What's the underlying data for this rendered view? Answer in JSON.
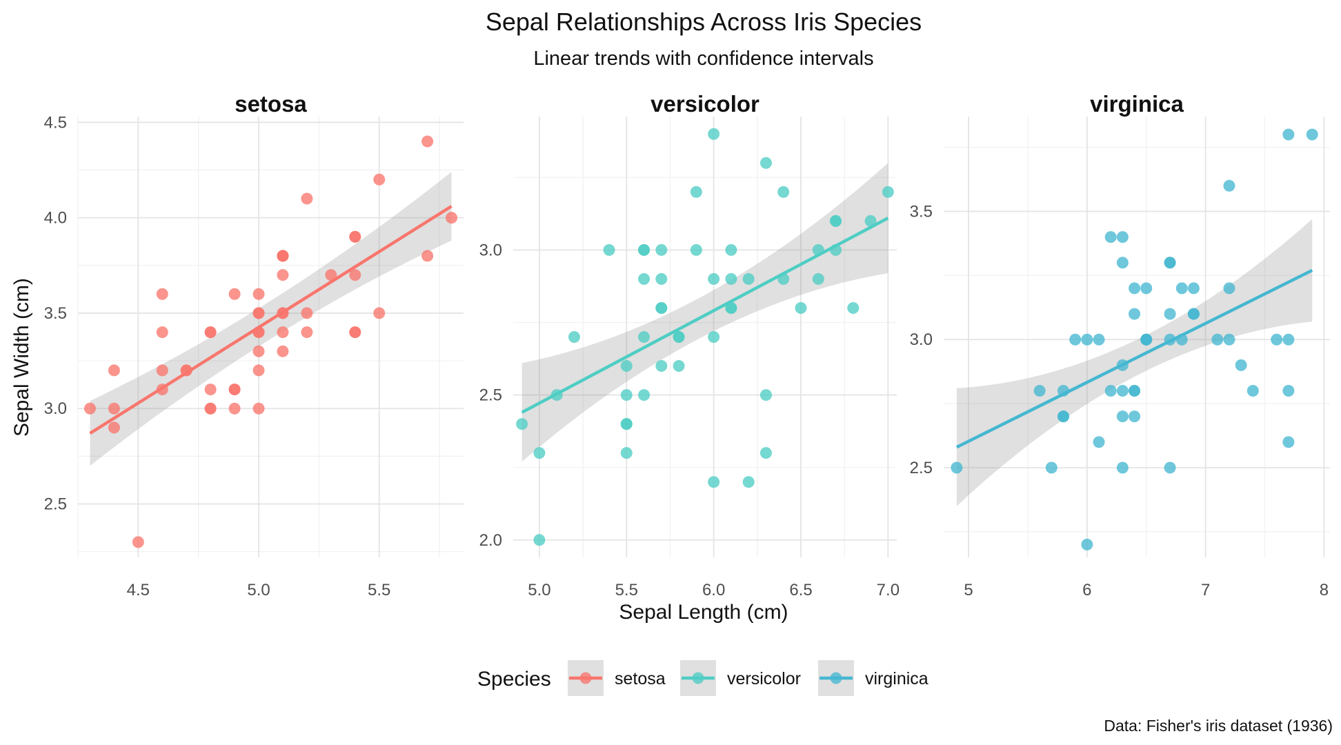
{
  "title": "Sepal Relationships Across Iris Species",
  "subtitle": "Linear trends with confidence intervals",
  "caption": "Data: Fisher's iris dataset (1936)",
  "legend": {
    "title": "Species",
    "position": "bottom"
  },
  "chart_data": {
    "type": "scatter",
    "facets": "free scales",
    "xlabel": "Sepal Length (cm)",
    "ylabel": "Sepal Width (cm)",
    "grid": true,
    "panels": [
      {
        "name": "setosa",
        "color": "#F8766D",
        "xlim": [
          4.25,
          5.85
        ],
        "ylim": [
          2.22,
          4.53
        ],
        "xticks": [
          "4.5",
          "5.0",
          "5.5"
        ],
        "yticks": [
          "2.5",
          "3.0",
          "3.5",
          "4.0",
          "4.5"
        ],
        "fit": {
          "x": [
            4.3,
            5.8
          ],
          "y": [
            2.87,
            4.06
          ],
          "ci_half": [
            0.17,
            0.1,
            0.18
          ]
        },
        "points": [
          [
            5.1,
            3.5
          ],
          [
            4.9,
            3.0
          ],
          [
            4.7,
            3.2
          ],
          [
            4.6,
            3.1
          ],
          [
            5.0,
            3.6
          ],
          [
            5.4,
            3.9
          ],
          [
            4.6,
            3.4
          ],
          [
            5.0,
            3.4
          ],
          [
            4.4,
            2.9
          ],
          [
            4.9,
            3.1
          ],
          [
            5.4,
            3.7
          ],
          [
            4.8,
            3.4
          ],
          [
            4.8,
            3.0
          ],
          [
            4.3,
            3.0
          ],
          [
            5.8,
            4.0
          ],
          [
            5.7,
            4.4
          ],
          [
            5.4,
            3.9
          ],
          [
            5.1,
            3.5
          ],
          [
            5.7,
            3.8
          ],
          [
            5.1,
            3.8
          ],
          [
            5.4,
            3.4
          ],
          [
            5.1,
            3.7
          ],
          [
            4.6,
            3.6
          ],
          [
            5.1,
            3.3
          ],
          [
            4.8,
            3.4
          ],
          [
            5.0,
            3.0
          ],
          [
            5.0,
            3.4
          ],
          [
            5.2,
            3.5
          ],
          [
            5.2,
            3.4
          ],
          [
            4.7,
            3.2
          ],
          [
            4.8,
            3.1
          ],
          [
            5.4,
            3.4
          ],
          [
            5.2,
            4.1
          ],
          [
            5.5,
            4.2
          ],
          [
            4.9,
            3.1
          ],
          [
            5.0,
            3.2
          ],
          [
            5.5,
            3.5
          ],
          [
            4.9,
            3.6
          ],
          [
            4.4,
            3.0
          ],
          [
            5.1,
            3.4
          ],
          [
            5.0,
            3.5
          ],
          [
            4.5,
            2.3
          ],
          [
            4.4,
            3.2
          ],
          [
            5.0,
            3.5
          ],
          [
            5.1,
            3.8
          ],
          [
            4.8,
            3.0
          ],
          [
            5.1,
            3.8
          ],
          [
            4.6,
            3.2
          ],
          [
            5.3,
            3.7
          ],
          [
            5.0,
            3.3
          ]
        ]
      },
      {
        "name": "versicolor",
        "color": "#4ECDC4",
        "xlim": [
          4.85,
          7.05
        ],
        "ylim": [
          1.94,
          3.46
        ],
        "xticks": [
          "5.0",
          "5.5",
          "6.0",
          "6.5",
          "7.0"
        ],
        "yticks": [
          "2.0",
          "2.5",
          "3.0"
        ],
        "fit": {
          "x": [
            4.9,
            7.0
          ],
          "y": [
            2.44,
            3.11
          ],
          "ci_half": [
            0.17,
            0.07,
            0.19
          ]
        },
        "points": [
          [
            7.0,
            3.2
          ],
          [
            6.4,
            3.2
          ],
          [
            6.9,
            3.1
          ],
          [
            5.5,
            2.3
          ],
          [
            6.5,
            2.8
          ],
          [
            5.7,
            2.8
          ],
          [
            6.3,
            3.3
          ],
          [
            4.9,
            2.4
          ],
          [
            6.6,
            2.9
          ],
          [
            5.2,
            2.7
          ],
          [
            5.0,
            2.0
          ],
          [
            5.9,
            3.0
          ],
          [
            6.0,
            2.2
          ],
          [
            6.1,
            2.9
          ],
          [
            5.6,
            2.9
          ],
          [
            6.7,
            3.1
          ],
          [
            5.6,
            3.0
          ],
          [
            5.8,
            2.7
          ],
          [
            6.2,
            2.2
          ],
          [
            5.6,
            2.5
          ],
          [
            5.9,
            3.2
          ],
          [
            6.1,
            2.8
          ],
          [
            6.3,
            2.5
          ],
          [
            6.1,
            2.8
          ],
          [
            6.4,
            2.9
          ],
          [
            6.6,
            3.0
          ],
          [
            6.8,
            2.8
          ],
          [
            6.7,
            3.0
          ],
          [
            6.0,
            2.9
          ],
          [
            5.7,
            2.6
          ],
          [
            5.5,
            2.4
          ],
          [
            5.5,
            2.4
          ],
          [
            5.8,
            2.7
          ],
          [
            6.0,
            2.7
          ],
          [
            5.4,
            3.0
          ],
          [
            6.0,
            3.4
          ],
          [
            6.7,
            3.1
          ],
          [
            6.3,
            2.3
          ],
          [
            5.6,
            3.0
          ],
          [
            5.5,
            2.5
          ],
          [
            5.5,
            2.6
          ],
          [
            6.1,
            3.0
          ],
          [
            5.8,
            2.6
          ],
          [
            5.0,
            2.3
          ],
          [
            5.6,
            2.7
          ],
          [
            5.7,
            3.0
          ],
          [
            5.7,
            2.9
          ],
          [
            6.2,
            2.9
          ],
          [
            5.1,
            2.5
          ],
          [
            5.7,
            2.8
          ]
        ]
      },
      {
        "name": "virginica",
        "color": "#45B7D1",
        "xlim": [
          4.79,
          8.05
        ],
        "ylim": [
          2.15,
          3.87
        ],
        "xticks": [
          "5",
          "6",
          "7",
          "8"
        ],
        "yticks": [
          "2.5",
          "3.0",
          "3.5"
        ],
        "fit": {
          "x": [
            4.9,
            7.9
          ],
          "y": [
            2.58,
            3.27
          ],
          "ci_half": [
            0.23,
            0.07,
            0.2
          ]
        },
        "points": [
          [
            6.3,
            3.3
          ],
          [
            5.8,
            2.7
          ],
          [
            7.1,
            3.0
          ],
          [
            6.3,
            2.9
          ],
          [
            6.5,
            3.0
          ],
          [
            7.6,
            3.0
          ],
          [
            4.9,
            2.5
          ],
          [
            7.3,
            2.9
          ],
          [
            6.7,
            2.5
          ],
          [
            7.2,
            3.6
          ],
          [
            6.5,
            3.2
          ],
          [
            6.4,
            2.7
          ],
          [
            6.8,
            3.0
          ],
          [
            5.7,
            2.5
          ],
          [
            5.8,
            2.8
          ],
          [
            6.4,
            3.2
          ],
          [
            6.5,
            3.0
          ],
          [
            7.7,
            3.8
          ],
          [
            7.7,
            2.6
          ],
          [
            6.0,
            2.2
          ],
          [
            6.9,
            3.2
          ],
          [
            5.6,
            2.8
          ],
          [
            7.7,
            2.8
          ],
          [
            6.3,
            2.7
          ],
          [
            6.7,
            3.3
          ],
          [
            7.2,
            3.2
          ],
          [
            6.2,
            2.8
          ],
          [
            6.1,
            3.0
          ],
          [
            6.4,
            2.8
          ],
          [
            7.2,
            3.0
          ],
          [
            7.4,
            2.8
          ],
          [
            7.9,
            3.8
          ],
          [
            6.4,
            2.8
          ],
          [
            6.3,
            2.8
          ],
          [
            6.1,
            2.6
          ],
          [
            7.7,
            3.0
          ],
          [
            6.3,
            3.4
          ],
          [
            6.4,
            3.1
          ],
          [
            6.0,
            3.0
          ],
          [
            6.9,
            3.1
          ],
          [
            6.7,
            3.1
          ],
          [
            6.9,
            3.1
          ],
          [
            5.8,
            2.7
          ],
          [
            6.8,
            3.2
          ],
          [
            6.7,
            3.3
          ],
          [
            6.7,
            3.0
          ],
          [
            6.3,
            2.5
          ],
          [
            6.5,
            3.0
          ],
          [
            6.2,
            3.4
          ],
          [
            5.9,
            3.0
          ]
        ]
      }
    ]
  }
}
